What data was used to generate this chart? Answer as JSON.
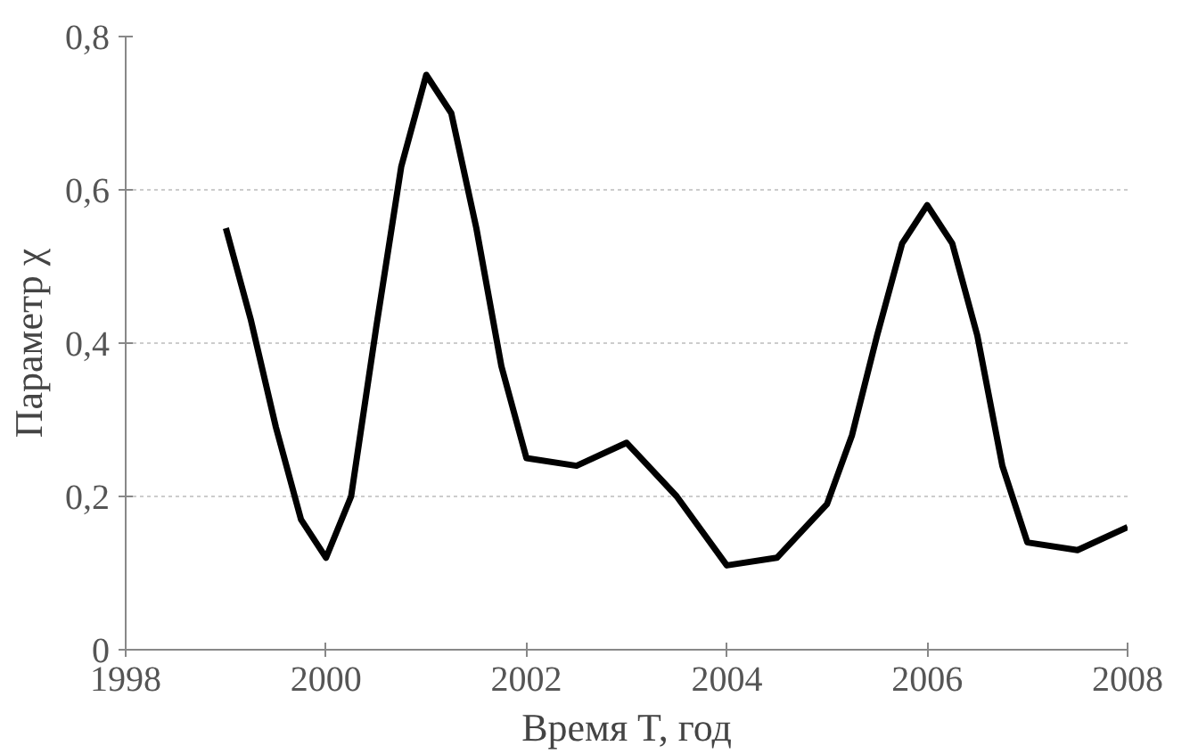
{
  "chart_data": {
    "type": "line",
    "xlabel": "Время T, год",
    "ylabel": "Параметр χ",
    "x": [
      1999,
      1999.25,
      1999.5,
      1999.75,
      2000,
      2000.25,
      2000.5,
      2000.75,
      2001,
      2001.25,
      2001.5,
      2001.75,
      2002,
      2002.5,
      2003,
      2003.5,
      2004,
      2004.5,
      2005,
      2005.25,
      2005.5,
      2005.75,
      2006,
      2006.25,
      2006.5,
      2006.75,
      2007,
      2007.5,
      2008
    ],
    "series": [
      {
        "color": "#000000",
        "values": [
          0.55,
          0.43,
          0.29,
          0.17,
          0.12,
          0.2,
          0.42,
          0.63,
          0.75,
          0.7,
          0.55,
          0.37,
          0.25,
          0.24,
          0.27,
          0.2,
          0.11,
          0.12,
          0.19,
          0.28,
          0.41,
          0.53,
          0.58,
          0.53,
          0.41,
          0.24,
          0.14,
          0.13,
          0.16
        ]
      }
    ],
    "xlim": [
      1998,
      2008
    ],
    "xticks": [
      1998,
      2000,
      2002,
      2004,
      2006,
      2008
    ],
    "ylim": [
      0,
      0.8
    ],
    "yticks": [
      {
        "value": 0,
        "label": "0"
      },
      {
        "value": 0.2,
        "label": "0,2"
      },
      {
        "value": 0.4,
        "label": "0,4"
      },
      {
        "value": 0.6,
        "label": "0,6"
      },
      {
        "value": 0.8,
        "label": "0,8"
      }
    ],
    "grid": "y",
    "marker": "none",
    "line_style": "solid"
  }
}
